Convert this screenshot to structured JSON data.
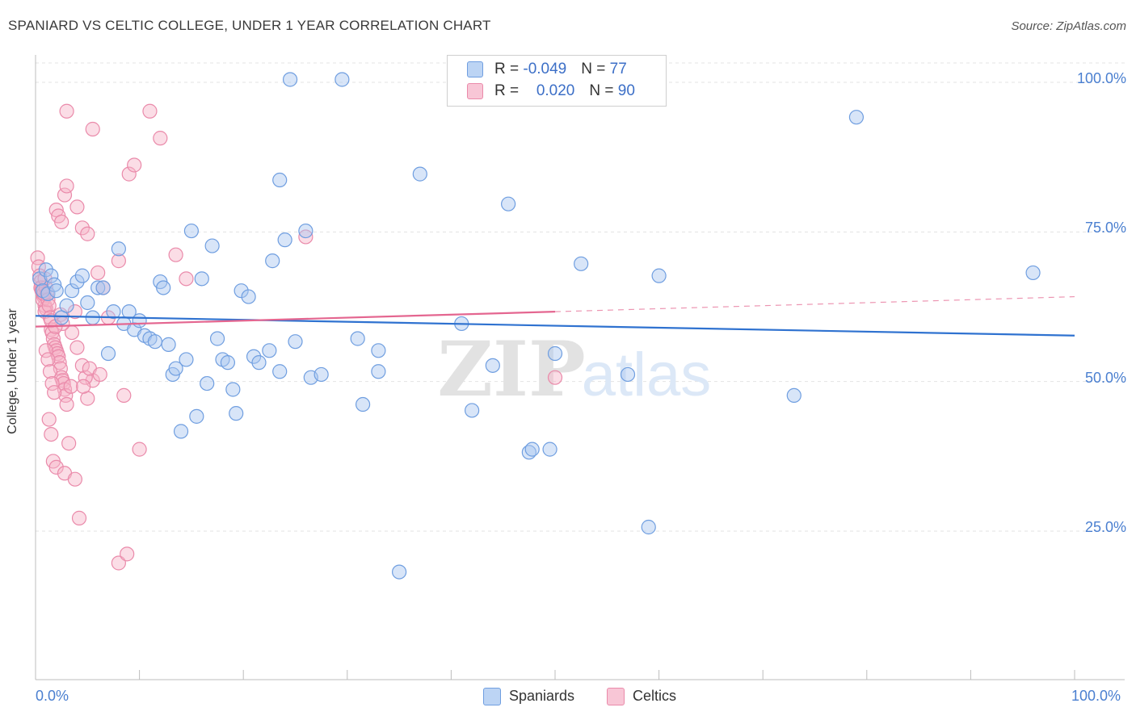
{
  "header": {
    "title": "SPANIARD VS CELTIC COLLEGE, UNDER 1 YEAR CORRELATION CHART",
    "source": "Source: ZipAtlas.com"
  },
  "legend": {
    "rows": [
      {
        "r_label": "R = ",
        "r_value": "-0.049",
        "n_label": "N = ",
        "n_value": "77"
      },
      {
        "r_label": "R = ",
        "r_value": "0.020",
        "n_label": "N = ",
        "n_value": "90"
      }
    ],
    "bottom": [
      "Spaniards",
      "Celtics"
    ]
  },
  "watermark": {
    "zip": "ZIP",
    "atlas": "atlas"
  },
  "colors": {
    "blue_fill": "#a9c6ef",
    "blue_stroke": "#6f9ee0",
    "blue_line": "#2f72d0",
    "pink_fill": "#f6b3c8",
    "pink_stroke": "#ea8aaa",
    "pink_line": "#e46690",
    "grid": "#e3e3e3",
    "tick_text": "#4a7fd0"
  },
  "chart_data": {
    "type": "scatter",
    "title": "SPANIARD VS CELTIC COLLEGE, UNDER 1 YEAR CORRELATION CHART",
    "xlabel": "",
    "ylabel": "College, Under 1 year",
    "xlim": [
      0,
      100
    ],
    "ylim": [
      0,
      104
    ],
    "x_tick_labels": [
      "0.0%",
      "100.0%"
    ],
    "y_ticks": [
      25,
      50,
      75,
      100
    ],
    "y_tick_labels": [
      "25.0%",
      "50.0%",
      "75.0%",
      "100.0%"
    ],
    "grid": true,
    "legend_position": "top-center",
    "series": [
      {
        "name": "Spaniards",
        "r": -0.049,
        "n": 77,
        "trend": {
          "x0": 0,
          "y0": 60.3,
          "x1": 100,
          "y1": 57.0
        },
        "points": [
          [
            0.4,
            66.5
          ],
          [
            0.7,
            64.5
          ],
          [
            1.0,
            68
          ],
          [
            1.2,
            64
          ],
          [
            1.5,
            67
          ],
          [
            1.8,
            65.5
          ],
          [
            2.0,
            64.5
          ],
          [
            2.5,
            60
          ],
          [
            3.0,
            62
          ],
          [
            3.5,
            64.5
          ],
          [
            4.0,
            66
          ],
          [
            4.5,
            67
          ],
          [
            5.0,
            62.5
          ],
          [
            5.5,
            60
          ],
          [
            6.0,
            65
          ],
          [
            6.5,
            65
          ],
          [
            7.0,
            54
          ],
          [
            7.5,
            61
          ],
          [
            8.0,
            71.5
          ],
          [
            8.5,
            59
          ],
          [
            9.0,
            61
          ],
          [
            9.5,
            58
          ],
          [
            10.0,
            59.5
          ],
          [
            10.5,
            57
          ],
          [
            11.0,
            56.5
          ],
          [
            11.5,
            56
          ],
          [
            12.0,
            66
          ],
          [
            12.3,
            65
          ],
          [
            12.8,
            55.5
          ],
          [
            13.2,
            50.5
          ],
          [
            13.5,
            51.5
          ],
          [
            14.0,
            41
          ],
          [
            14.5,
            53
          ],
          [
            15.0,
            74.5
          ],
          [
            15.5,
            43.5
          ],
          [
            16.0,
            66.5
          ],
          [
            16.5,
            49
          ],
          [
            17.0,
            72
          ],
          [
            17.5,
            56.5
          ],
          [
            18.0,
            53
          ],
          [
            18.5,
            52.5
          ],
          [
            19.0,
            48
          ],
          [
            19.3,
            44
          ],
          [
            19.8,
            64.5
          ],
          [
            20.5,
            63.5
          ],
          [
            21.0,
            53.5
          ],
          [
            21.5,
            52.5
          ],
          [
            22.5,
            54.5
          ],
          [
            22.8,
            69.5
          ],
          [
            23.5,
            51
          ],
          [
            23.5,
            83
          ],
          [
            24.0,
            73
          ],
          [
            24.5,
            99.8
          ],
          [
            25.0,
            56
          ],
          [
            26.0,
            74.5
          ],
          [
            26.5,
            50
          ],
          [
            27.5,
            50.5
          ],
          [
            29.5,
            99.8
          ],
          [
            31,
            56.5
          ],
          [
            31.5,
            45.5
          ],
          [
            33,
            51
          ],
          [
            33,
            54.5
          ],
          [
            35,
            17.5
          ],
          [
            37,
            84
          ],
          [
            41,
            59
          ],
          [
            42,
            44.5
          ],
          [
            44,
            52
          ],
          [
            45.5,
            79
          ],
          [
            47.5,
            37.5
          ],
          [
            47.8,
            38
          ],
          [
            49.5,
            38
          ],
          [
            50,
            54
          ],
          [
            52.5,
            69
          ],
          [
            57,
            50.5
          ],
          [
            59,
            25
          ],
          [
            60,
            67
          ],
          [
            73,
            47
          ],
          [
            79,
            93.5
          ],
          [
            96,
            67.5
          ]
        ]
      },
      {
        "name": "Celtics",
        "r": 0.02,
        "n": 90,
        "trend": {
          "x0": 0,
          "y0": 58.5,
          "x1": 100,
          "y1": 63.5,
          "solid_until_x": 50
        },
        "points": [
          [
            0.2,
            70
          ],
          [
            0.3,
            68.5
          ],
          [
            0.4,
            67
          ],
          [
            0.5,
            66
          ],
          [
            0.6,
            65
          ],
          [
            0.7,
            64
          ],
          [
            0.8,
            63.5
          ],
          [
            0.9,
            62
          ],
          [
            1.0,
            61.5
          ],
          [
            0.5,
            65
          ],
          [
            0.6,
            64.5
          ],
          [
            0.7,
            63
          ],
          [
            0.8,
            64
          ],
          [
            0.9,
            61
          ],
          [
            1.0,
            65
          ],
          [
            1.1,
            64
          ],
          [
            1.2,
            63
          ],
          [
            1.3,
            62
          ],
          [
            1.4,
            60
          ],
          [
            1.5,
            58
          ],
          [
            1.6,
            57.5
          ],
          [
            1.7,
            56.5
          ],
          [
            1.8,
            55.5
          ],
          [
            1.9,
            55
          ],
          [
            2.0,
            54.5
          ],
          [
            2.1,
            54
          ],
          [
            2.2,
            53.5
          ],
          [
            2.3,
            52.5
          ],
          [
            2.4,
            51.5
          ],
          [
            2.5,
            50
          ],
          [
            2.6,
            49.5
          ],
          [
            2.7,
            49
          ],
          [
            2.8,
            48
          ],
          [
            2.9,
            47
          ],
          [
            3.0,
            45.5
          ],
          [
            1.0,
            54.5
          ],
          [
            1.2,
            53
          ],
          [
            1.4,
            51
          ],
          [
            1.6,
            49
          ],
          [
            1.8,
            47.5
          ],
          [
            1.3,
            43
          ],
          [
            1.5,
            40.5
          ],
          [
            1.7,
            36
          ],
          [
            2.0,
            35
          ],
          [
            2.8,
            34
          ],
          [
            3.2,
            39
          ],
          [
            3.8,
            33
          ],
          [
            4.2,
            26.5
          ],
          [
            5.0,
            46.5
          ],
          [
            5.5,
            49.5
          ],
          [
            2.0,
            78
          ],
          [
            2.2,
            77
          ],
          [
            2.5,
            76
          ],
          [
            2.8,
            80.5
          ],
          [
            3.0,
            82
          ],
          [
            4.0,
            78.5
          ],
          [
            4.5,
            75
          ],
          [
            5.0,
            74
          ],
          [
            6.0,
            67.5
          ],
          [
            6.5,
            65
          ],
          [
            7.0,
            60
          ],
          [
            8.0,
            69.5
          ],
          [
            8.5,
            47
          ],
          [
            9.0,
            84
          ],
          [
            9.5,
            85.5
          ],
          [
            10,
            38
          ],
          [
            11,
            94.5
          ],
          [
            12,
            90
          ],
          [
            13.5,
            70.5
          ],
          [
            14.5,
            66.5
          ],
          [
            5.5,
            91.5
          ],
          [
            3.0,
            94.5
          ],
          [
            8.0,
            19
          ],
          [
            8.8,
            20.5
          ],
          [
            3.5,
            57.5
          ],
          [
            4.0,
            55
          ],
          [
            4.5,
            52
          ],
          [
            4.8,
            50
          ],
          [
            5.2,
            51.5
          ],
          [
            3.8,
            61
          ],
          [
            2.4,
            60.5
          ],
          [
            2.6,
            59
          ],
          [
            1.5,
            59.5
          ],
          [
            3.4,
            48.5
          ],
          [
            4.6,
            48.5
          ],
          [
            26.0,
            73.5
          ],
          [
            50.0,
            50
          ],
          [
            6.2,
            50.5
          ],
          [
            0.9,
            66.5
          ],
          [
            1.9,
            58.5
          ]
        ]
      }
    ]
  }
}
